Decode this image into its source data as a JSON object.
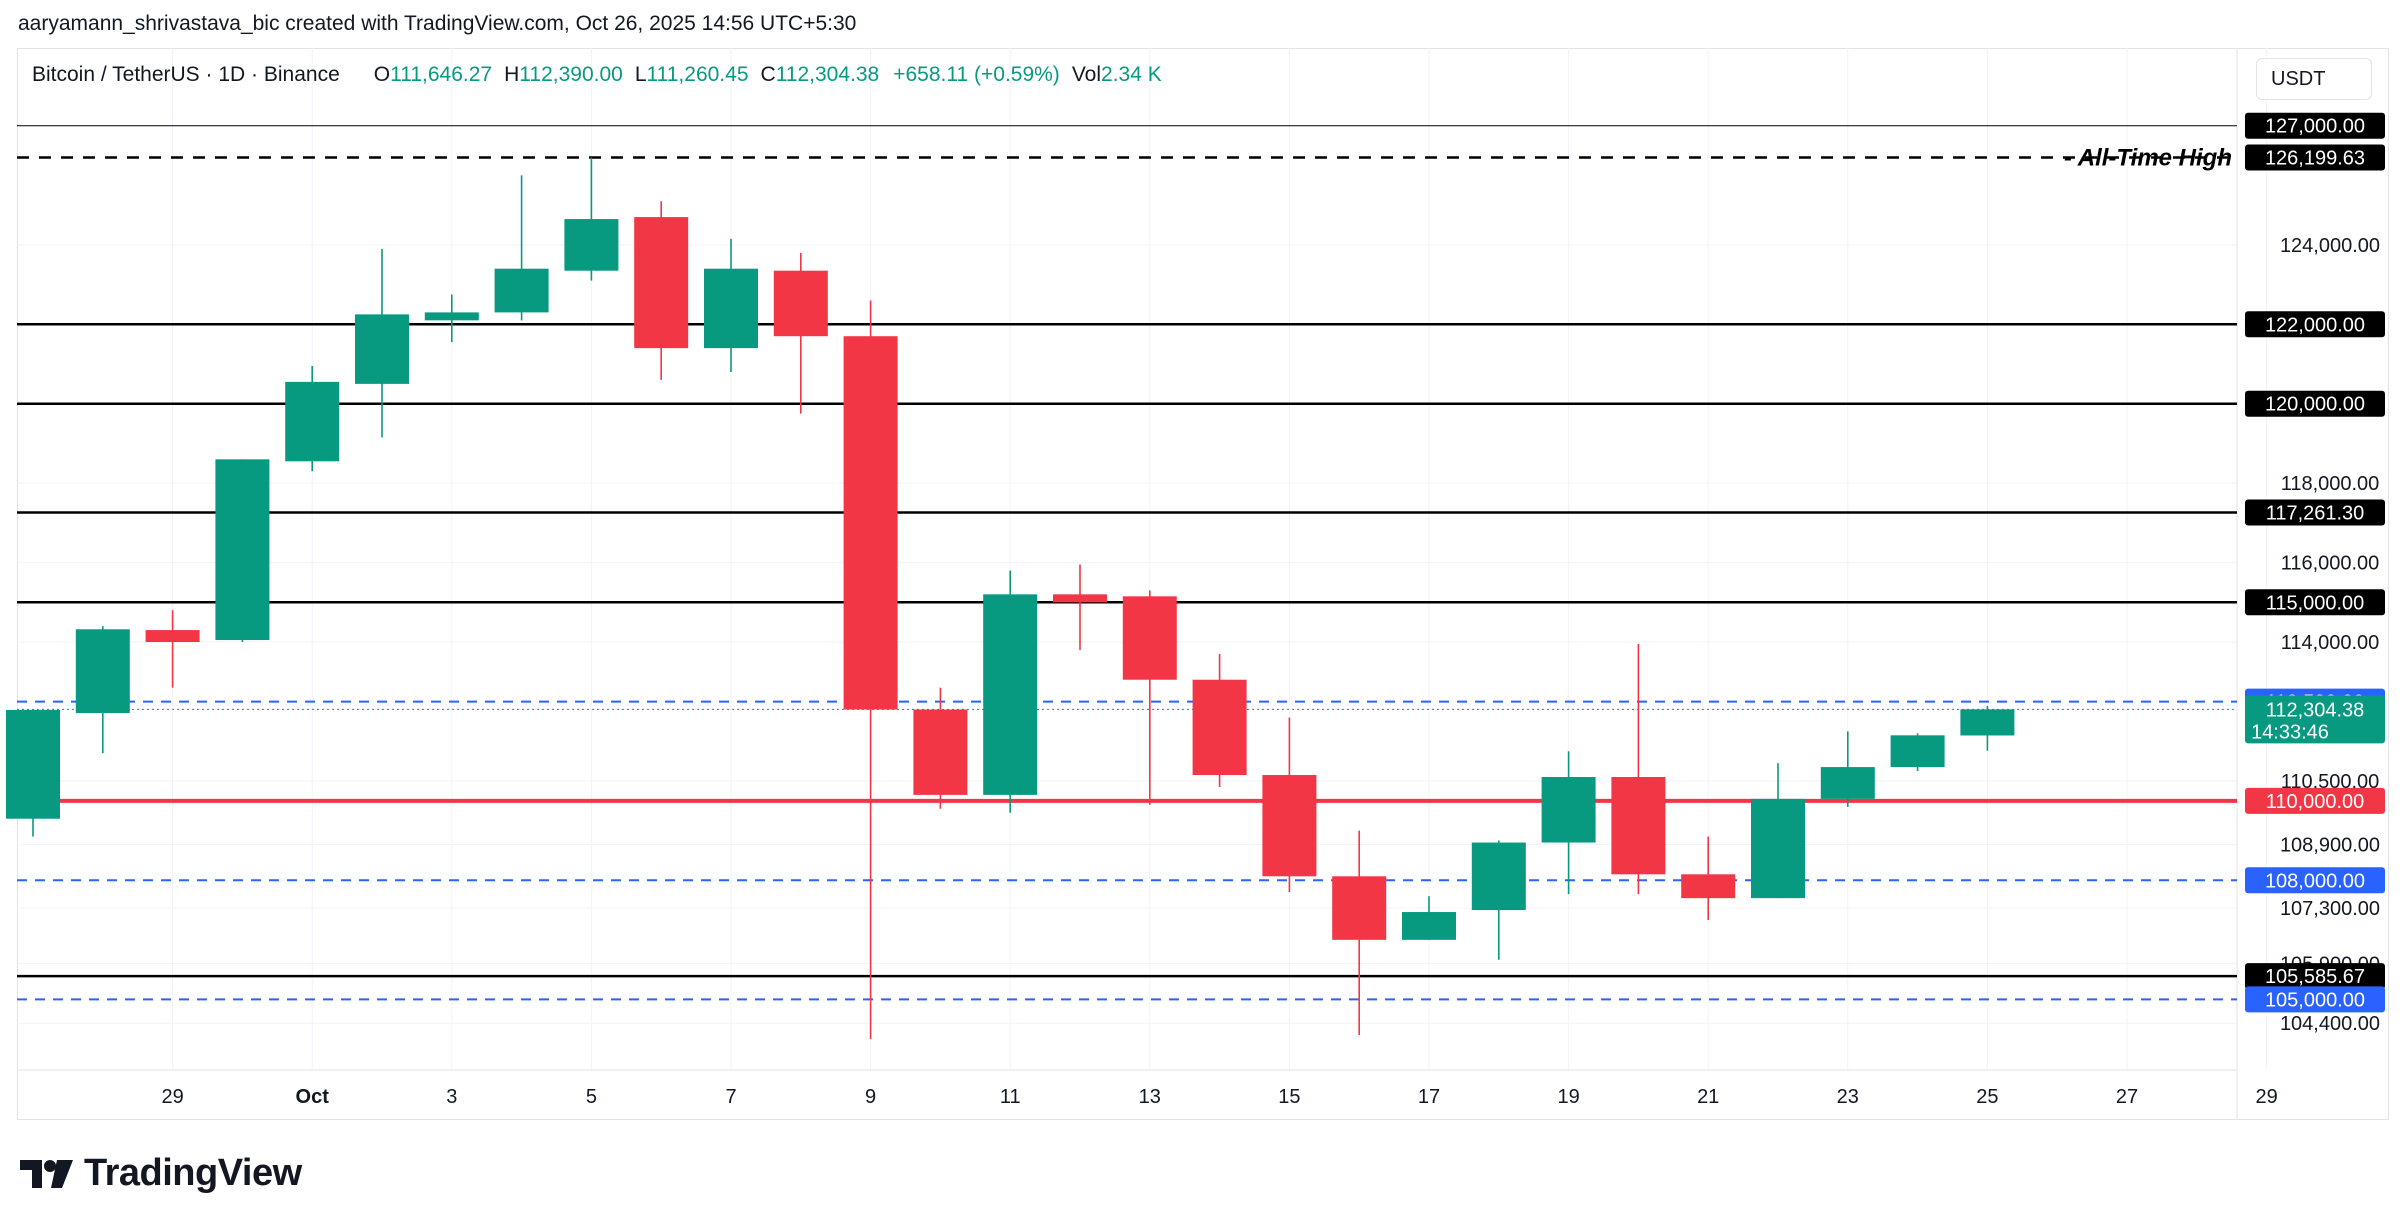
{
  "credit": "aaryamann_shrivastava_bic created with TradingView.com, Oct 26, 2025 14:56 UTC+5:30",
  "legend": {
    "symbol": "Bitcoin / TetherUS · 1D · Binance",
    "open_label": "O",
    "open": "111,646.27",
    "high_label": "H",
    "high": "112,390.00",
    "low_label": "L",
    "low": "111,260.45",
    "close_label": "C",
    "close": "112,304.38",
    "change": "+658.11 (+0.59%)",
    "vol_label": "Vol",
    "vol": "2.34 K"
  },
  "currency": "USDT",
  "brand": {
    "name": "TradingView",
    "logo": "tradingview-logo-icon"
  },
  "colors": {
    "up": "#089981",
    "down": "#f23645",
    "support": "#2962ff",
    "line": "#000000",
    "axis_text": "#131722",
    "grid": "#f0f3fa"
  },
  "chart_data": {
    "type": "candlestick",
    "price_scale": {
      "ylim": [
        103600,
        127900
      ]
    },
    "x_ticks": [
      "29",
      "Oct",
      "3",
      "5",
      "7",
      "9",
      "11",
      "13",
      "15",
      "17",
      "19",
      "21",
      "23",
      "25",
      "27",
      "29"
    ],
    "y_ticks": [
      "124,000.00",
      "118,000.00",
      "116,000.00",
      "114,000.00",
      "110,500.00",
      "108,900.00",
      "107,300.00",
      "105,900.00",
      "104,400.00"
    ],
    "candles": [
      {
        "date": "Sep 27",
        "o": 109550,
        "h": 112250,
        "l": 109100,
        "c": 112290
      },
      {
        "date": "Sep 28",
        "o": 112210,
        "h": 114400,
        "l": 111200,
        "c": 114320
      },
      {
        "date": "Sep 29",
        "o": 114300,
        "h": 114800,
        "l": 112850,
        "c": 114000
      },
      {
        "date": "Sep 30",
        "o": 114050,
        "h": 118600,
        "l": 114000,
        "c": 118600
      },
      {
        "date": "Oct 1",
        "o": 118550,
        "h": 120950,
        "l": 118300,
        "c": 120550
      },
      {
        "date": "Oct 2",
        "o": 120500,
        "h": 123900,
        "l": 119150,
        "c": 122250
      },
      {
        "date": "Oct 3",
        "o": 122100,
        "h": 122750,
        "l": 121550,
        "c": 122300
      },
      {
        "date": "Oct 4",
        "o": 122300,
        "h": 125750,
        "l": 122100,
        "c": 123400
      },
      {
        "date": "Oct 5",
        "o": 123350,
        "h": 126199.63,
        "l": 123100,
        "c": 124650
      },
      {
        "date": "Oct 6",
        "o": 124700,
        "h": 125100,
        "l": 120600,
        "c": 121400
      },
      {
        "date": "Oct 7",
        "o": 121400,
        "h": 124150,
        "l": 120800,
        "c": 123400
      },
      {
        "date": "Oct 8",
        "o": 123350,
        "h": 123800,
        "l": 119750,
        "c": 121700
      },
      {
        "date": "Oct 9",
        "o": 121700,
        "h": 122600,
        "l": 104000,
        "c": 112300
      },
      {
        "date": "Oct 10",
        "o": 112300,
        "h": 112850,
        "l": 109800,
        "c": 110150
      },
      {
        "date": "Oct 11",
        "o": 110150,
        "h": 115800,
        "l": 109700,
        "c": 115200
      },
      {
        "date": "Oct 12",
        "o": 115200,
        "h": 115950,
        "l": 113800,
        "c": 115000
      },
      {
        "date": "Oct 13",
        "o": 115150,
        "h": 115300,
        "l": 109900,
        "c": 113050
      },
      {
        "date": "Oct 14",
        "o": 113050,
        "h": 113700,
        "l": 110350,
        "c": 110650
      },
      {
        "date": "Oct 15",
        "o": 110650,
        "h": 112100,
        "l": 107700,
        "c": 108100
      },
      {
        "date": "Oct 16",
        "o": 108100,
        "h": 109250,
        "l": 104100,
        "c": 106500
      },
      {
        "date": "Oct 17",
        "o": 106500,
        "h": 107600,
        "l": 106500,
        "c": 107200
      },
      {
        "date": "Oct 18",
        "o": 107250,
        "h": 109000,
        "l": 106000,
        "c": 108950
      },
      {
        "date": "Oct 19",
        "o": 108950,
        "h": 111250,
        "l": 107650,
        "c": 110600
      },
      {
        "date": "Oct 20",
        "o": 110600,
        "h": 113950,
        "l": 107650,
        "c": 108150
      },
      {
        "date": "Oct 21",
        "o": 108150,
        "h": 109100,
        "l": 107000,
        "c": 107550
      },
      {
        "date": "Oct 22",
        "o": 107550,
        "h": 110950,
        "l": 107550,
        "c": 110050
      },
      {
        "date": "Oct 23",
        "o": 110050,
        "h": 111750,
        "l": 109850,
        "c": 110850
      },
      {
        "date": "Oct 24",
        "o": 110850,
        "h": 111700,
        "l": 110750,
        "c": 111650
      },
      {
        "date": "Oct 25",
        "o": 111646.27,
        "h": 112390,
        "l": 111260.45,
        "c": 112304.38
      }
    ],
    "levels": [
      {
        "price": 127000,
        "label": "127,000.00",
        "style": "thin",
        "color": "#000000"
      },
      {
        "price": 126199.63,
        "label": "126,199.63",
        "style": "dashed",
        "color": "#000000",
        "annotation": "All-Time High"
      },
      {
        "price": 122000,
        "label": "122,000.00",
        "style": "solid",
        "color": "#000000"
      },
      {
        "price": 120000,
        "label": "120,000.00",
        "style": "solid",
        "color": "#000000"
      },
      {
        "price": 117261.3,
        "label": "117,261.30",
        "style": "solid",
        "color": "#000000"
      },
      {
        "price": 115000,
        "label": "115,000.00",
        "style": "solid",
        "color": "#000000"
      },
      {
        "price": 112500,
        "label": "112,500.00",
        "style": "dashed",
        "color": "#2962ff"
      },
      {
        "price": 110000,
        "label": "110,000.00",
        "style": "thick",
        "color": "#f23645"
      },
      {
        "price": 108000,
        "label": "108,000.00",
        "style": "dashed",
        "color": "#2962ff"
      },
      {
        "price": 105585.67,
        "label": "105,585.67",
        "style": "solid",
        "color": "#000000"
      },
      {
        "price": 105000,
        "label": "105,000.00",
        "style": "dashed",
        "color": "#2962ff"
      }
    ],
    "last_price": {
      "price": 112304.38,
      "label": "112,304.38",
      "countdown": "14:33:46",
      "color": "#089981"
    }
  }
}
